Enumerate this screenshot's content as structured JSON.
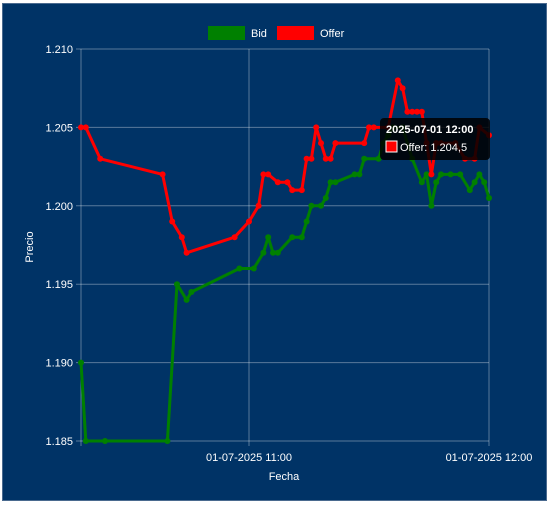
{
  "chart_data": {
    "type": "line",
    "title": "",
    "xlabel": "Fecha",
    "ylabel": "Precio",
    "x_ticks": [
      "01-07-2025 11:00",
      "01-07-2025 12:00"
    ],
    "y_ticks": [
      "1.185",
      "1.190",
      "1.195",
      "1.200",
      "1.205",
      "1.210"
    ],
    "ylim": [
      1.185,
      1.21
    ],
    "grid": true,
    "legend_position": "top",
    "tooltip": {
      "title": "2025-07-01 12:00",
      "text": "Offer: 1.204,5"
    },
    "series": [
      {
        "name": "Bid",
        "color": "#008000",
        "points": [
          [
            "10:25",
            1.19
          ],
          [
            "10:26",
            1.185
          ],
          [
            "10:30",
            1.185
          ],
          [
            "10:43",
            1.185
          ],
          [
            "10:45",
            1.195
          ],
          [
            "10:47",
            1.194
          ],
          [
            "10:48",
            1.1945
          ],
          [
            "10:58",
            1.196
          ],
          [
            "11:01",
            1.196
          ],
          [
            "11:03",
            1.197
          ],
          [
            "11:04",
            1.198
          ],
          [
            "11:05",
            1.197
          ],
          [
            "11:06",
            1.197
          ],
          [
            "11:09",
            1.198
          ],
          [
            "11:11",
            1.198
          ],
          [
            "11:12",
            1.199
          ],
          [
            "11:13",
            1.2
          ],
          [
            "11:15",
            1.2
          ],
          [
            "11:16",
            1.2005
          ],
          [
            "11:17",
            1.2015
          ],
          [
            "11:18",
            1.2015
          ],
          [
            "11:22",
            1.202
          ],
          [
            "11:23",
            1.202
          ],
          [
            "11:24",
            1.203
          ],
          [
            "11:27",
            1.203
          ],
          [
            "11:28",
            1.204
          ],
          [
            "11:29",
            1.2045
          ],
          [
            "11:30",
            1.205
          ],
          [
            "11:32",
            1.205
          ],
          [
            "11:34",
            1.203
          ],
          [
            "11:36",
            1.2015
          ],
          [
            "11:37",
            1.202
          ],
          [
            "11:38",
            1.2
          ],
          [
            "11:39",
            1.2015
          ],
          [
            "11:40",
            1.202
          ],
          [
            "11:42",
            1.202
          ],
          [
            "11:44",
            1.202
          ],
          [
            "11:46",
            1.201
          ],
          [
            "11:47",
            1.2015
          ],
          [
            "11:48",
            1.202
          ],
          [
            "11:49",
            1.2015
          ],
          [
            "11:50",
            1.2005
          ]
        ]
      },
      {
        "name": "Offer",
        "color": "#ff0000",
        "points": [
          [
            "10:25",
            1.205
          ],
          [
            "10:26",
            1.205
          ],
          [
            "10:29",
            1.203
          ],
          [
            "10:42",
            1.202
          ],
          [
            "10:44",
            1.199
          ],
          [
            "10:46",
            1.198
          ],
          [
            "10:47",
            1.197
          ],
          [
            "10:57",
            1.198
          ],
          [
            "11:00",
            1.199
          ],
          [
            "11:02",
            1.2
          ],
          [
            "11:03",
            1.202
          ],
          [
            "11:04",
            1.202
          ],
          [
            "11:06",
            1.2015
          ],
          [
            "11:08",
            1.2015
          ],
          [
            "11:09",
            1.201
          ],
          [
            "11:11",
            1.201
          ],
          [
            "11:12",
            1.203
          ],
          [
            "11:13",
            1.203
          ],
          [
            "11:14",
            1.205
          ],
          [
            "11:15",
            1.204
          ],
          [
            "11:16",
            1.203
          ],
          [
            "11:17",
            1.203
          ],
          [
            "11:18",
            1.204
          ],
          [
            "11:24",
            1.204
          ],
          [
            "11:25",
            1.205
          ],
          [
            "11:26",
            1.205
          ],
          [
            "11:29",
            1.205
          ],
          [
            "11:31",
            1.208
          ],
          [
            "11:32",
            1.2075
          ],
          [
            "11:33",
            1.206
          ],
          [
            "11:34",
            1.206
          ],
          [
            "11:35",
            1.206
          ],
          [
            "11:36",
            1.206
          ],
          [
            "11:37",
            1.204
          ],
          [
            "11:38",
            1.202
          ],
          [
            "11:39",
            1.204
          ],
          [
            "11:40",
            1.204
          ],
          [
            "11:43",
            1.204
          ],
          [
            "11:45",
            1.203
          ],
          [
            "11:47",
            1.203
          ],
          [
            "11:48",
            1.205
          ],
          [
            "11:50",
            1.2045
          ]
        ]
      }
    ]
  }
}
